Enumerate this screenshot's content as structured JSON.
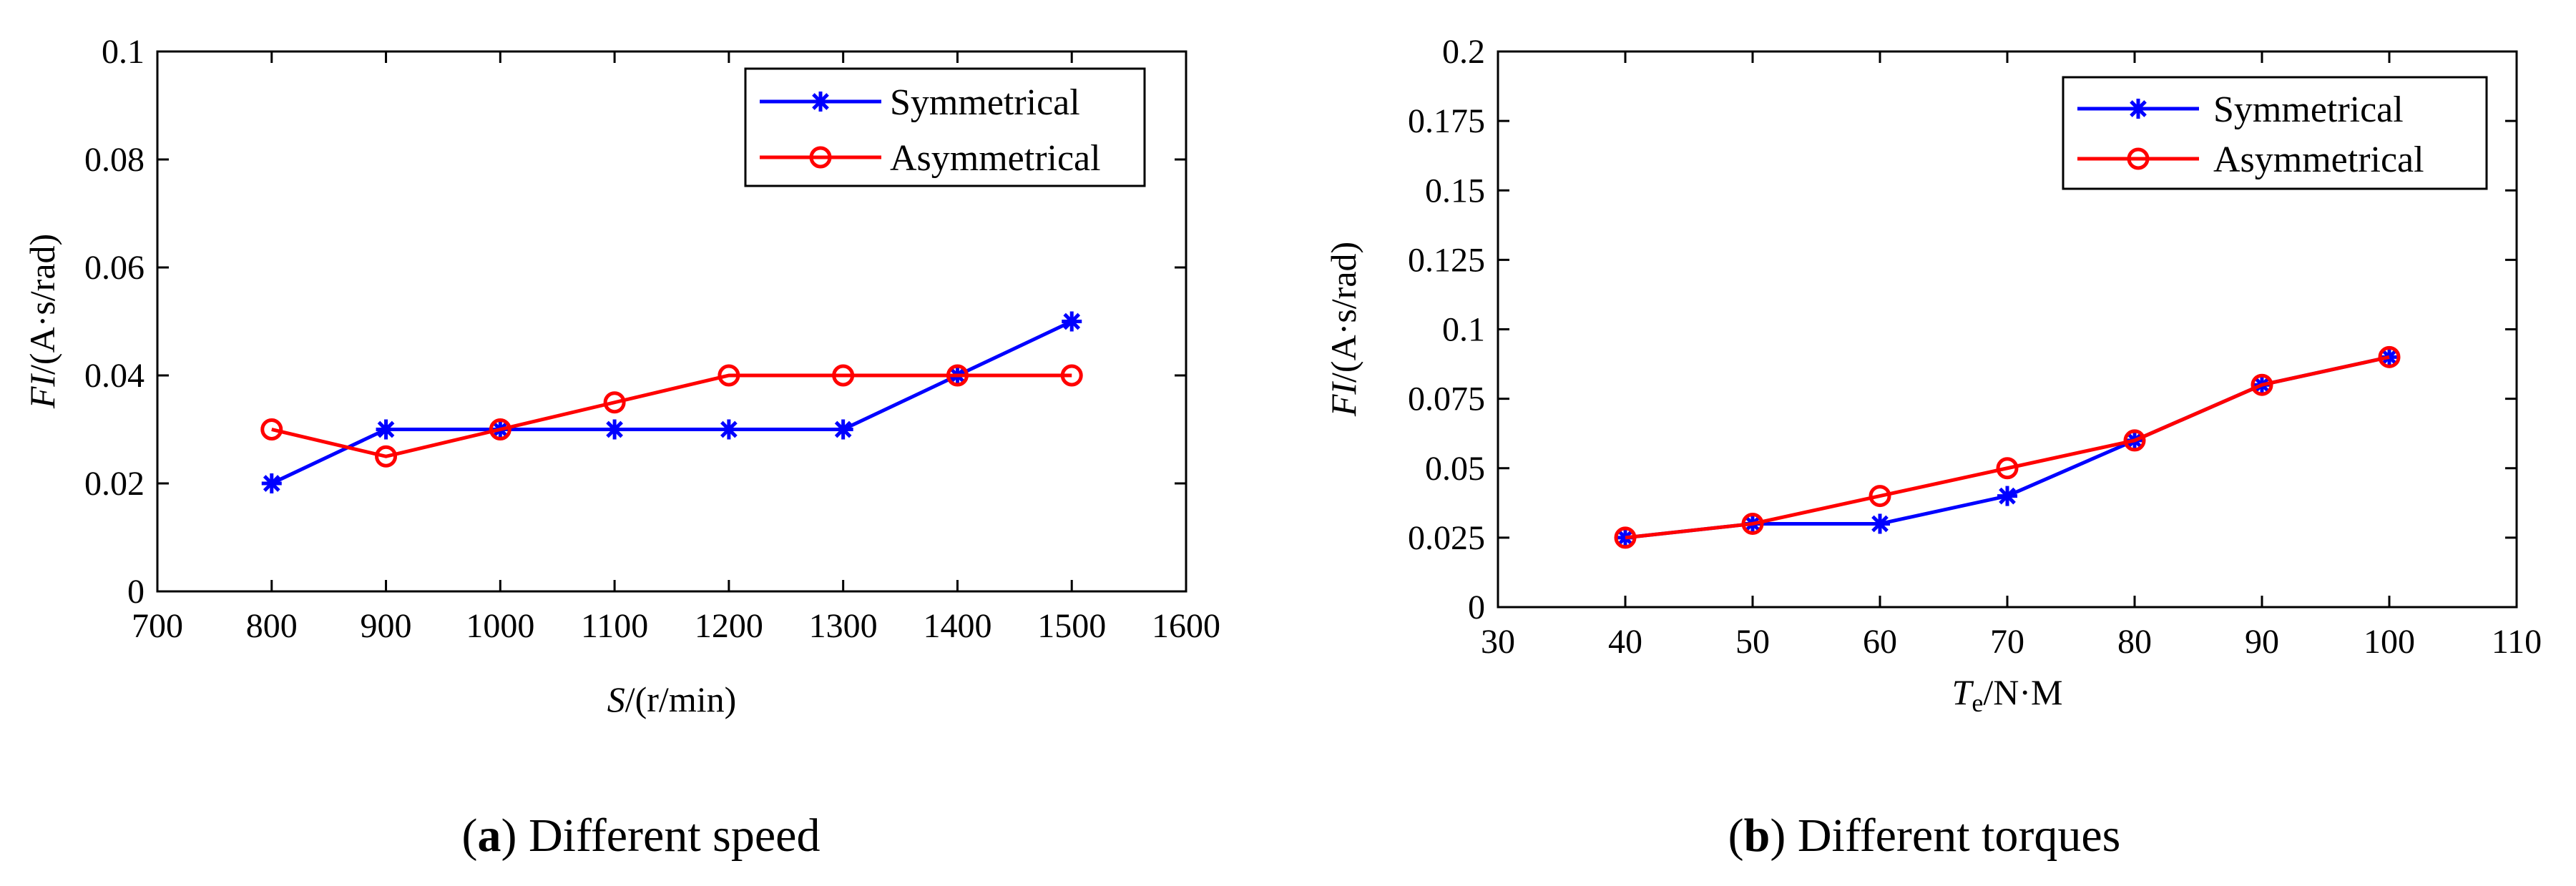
{
  "chart_data": [
    {
      "type": "line",
      "panel": "a",
      "caption_label": "a",
      "caption_text": " Different speed",
      "xlabel_italic": "S",
      "xlabel_rest": "/(r/min)",
      "ylabel_italic": "FI",
      "ylabel_rest": "/(A·s/rad)",
      "xlim": [
        700,
        1600
      ],
      "ylim": [
        0,
        0.1
      ],
      "x_ticks": [
        700,
        800,
        900,
        1000,
        1100,
        1200,
        1300,
        1400,
        1500,
        1600
      ],
      "x_tick_labels": [
        "700",
        "800",
        "900",
        "1000",
        "1100",
        "1200",
        "1300",
        "1400",
        "1500",
        "1600"
      ],
      "y_ticks": [
        0,
        0.02,
        0.04,
        0.06,
        0.08,
        0.1
      ],
      "y_tick_labels": [
        "0",
        "0.02",
        "0.04",
        "0.06",
        "0.08",
        "0.1"
      ],
      "x": [
        800,
        900,
        1000,
        1100,
        1200,
        1300,
        1400,
        1500
      ],
      "series": [
        {
          "name": "Symmetrical",
          "color": "#0000ff",
          "marker": "asterisk",
          "values": [
            0.02,
            0.03,
            0.03,
            0.03,
            0.03,
            0.03,
            0.04,
            0.05
          ]
        },
        {
          "name": "Asymmetrical",
          "color": "#ff0000",
          "marker": "circle",
          "values": [
            0.03,
            0.025,
            0.03,
            0.035,
            0.04,
            0.04,
            0.04,
            0.04
          ]
        }
      ],
      "legend": "top-right"
    },
    {
      "type": "line",
      "panel": "b",
      "caption_label": "b",
      "caption_text": " Different torques",
      "xlabel_italic": "T",
      "xlabel_sub": "e",
      "xlabel_rest": "/N·M",
      "ylabel_italic": "FI",
      "ylabel_rest": "/(A·s/rad)",
      "xlim": [
        30,
        110
      ],
      "ylim": [
        0,
        0.2
      ],
      "x_ticks": [
        30,
        40,
        50,
        60,
        70,
        80,
        90,
        100,
        110
      ],
      "x_tick_labels": [
        "30",
        "40",
        "50",
        "60",
        "70",
        "80",
        "90",
        "100",
        "110"
      ],
      "y_ticks": [
        0,
        0.025,
        0.05,
        0.075,
        0.1,
        0.125,
        0.15,
        0.175,
        0.2
      ],
      "y_tick_labels": [
        "0",
        "0.025",
        "0.05",
        "0.075",
        "0.1",
        "0.125",
        "0.15",
        "0.175",
        "0.2"
      ],
      "x": [
        40,
        50,
        60,
        70,
        80,
        90,
        100
      ],
      "series": [
        {
          "name": "Symmetrical",
          "color": "#0000ff",
          "marker": "asterisk",
          "values": [
            0.025,
            0.03,
            0.03,
            0.04,
            0.06,
            0.08,
            0.09
          ]
        },
        {
          "name": "Asymmetrical",
          "color": "#ff0000",
          "marker": "circle",
          "values": [
            0.025,
            0.03,
            0.04,
            0.05,
            0.06,
            0.08,
            0.09
          ]
        }
      ],
      "legend": "top-right"
    }
  ]
}
